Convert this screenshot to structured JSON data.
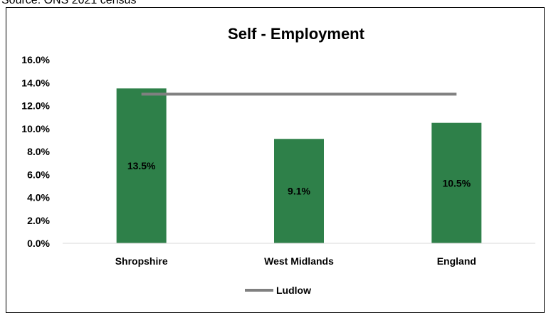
{
  "top_caption": "Source: ONS 2021 census",
  "chart_data": {
    "type": "bar",
    "title": "Self - Employment",
    "categories": [
      "Shropshire",
      "West Midlands",
      "England"
    ],
    "values": [
      13.5,
      9.1,
      10.5
    ],
    "data_labels": [
      "13.5%",
      "9.1%",
      "10.5%"
    ],
    "ylim": [
      0,
      16
    ],
    "yticks": [
      "0.0%",
      "2.0%",
      "4.0%",
      "6.0%",
      "8.0%",
      "10.0%",
      "12.0%",
      "14.0%",
      "16.0%"
    ],
    "bar_color": "#2e8049",
    "reference_line": {
      "name": "Ludlow",
      "value": 13.0,
      "color": "#808080"
    },
    "legend": {
      "position": "bottom",
      "entries": [
        "Ludlow"
      ]
    },
    "grid": false
  }
}
